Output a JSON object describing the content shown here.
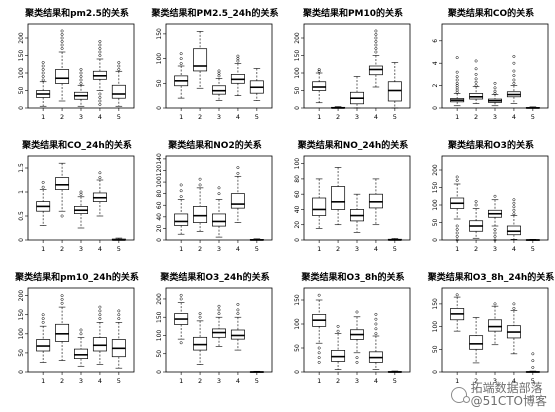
{
  "watermark": {
    "line1": "拓端数据部落",
    "line2": "@51CTO博客"
  },
  "chart_data": [
    {
      "type": "box",
      "title": "聚类结果和pm2.5的关系",
      "categories": [
        "1",
        "2",
        "3",
        "4",
        "5"
      ],
      "yticks": [
        0,
        50,
        100,
        150,
        200
      ],
      "ylim": [
        0,
        240
      ],
      "boxes": [
        {
          "min": 5,
          "q1": 30,
          "median": 40,
          "q3": 50,
          "max": 75,
          "outliers": [
            80,
            90,
            100,
            110,
            120,
            130
          ]
        },
        {
          "min": 20,
          "q1": 70,
          "median": 85,
          "q3": 110,
          "max": 160,
          "outliers": [
            170,
            180,
            190,
            200,
            210,
            220
          ]
        },
        {
          "min": 5,
          "q1": 25,
          "median": 35,
          "q3": 45,
          "max": 65,
          "outliers": [
            70,
            80,
            90,
            100,
            110
          ]
        },
        {
          "min": 50,
          "q1": 82,
          "median": 92,
          "q3": 105,
          "max": 140,
          "outliers": [
            10,
            20,
            30,
            40,
            150,
            160,
            170,
            180,
            190
          ]
        },
        {
          "min": 5,
          "q1": 28,
          "median": 40,
          "q3": 65,
          "max": 105,
          "outliers": [
            110,
            120,
            130
          ]
        }
      ]
    },
    {
      "type": "box",
      "title": "聚类结果和PM2.5_24h的关系",
      "categories": [
        "1",
        "2",
        "3",
        "4",
        "5"
      ],
      "yticks": [
        0,
        50,
        100,
        150
      ],
      "ylim": [
        0,
        170
      ],
      "boxes": [
        {
          "min": 20,
          "q1": 45,
          "median": 55,
          "q3": 65,
          "max": 85,
          "outliers": [
            90,
            100,
            110
          ]
        },
        {
          "min": 40,
          "q1": 75,
          "median": 85,
          "q3": 120,
          "max": 155,
          "outliers": []
        },
        {
          "min": 15,
          "q1": 28,
          "median": 35,
          "q3": 45,
          "max": 60,
          "outliers": [
            65,
            70,
            75
          ]
        },
        {
          "min": 25,
          "q1": 50,
          "median": 58,
          "q3": 68,
          "max": 90,
          "outliers": [
            95,
            100,
            105
          ]
        },
        {
          "min": 15,
          "q1": 30,
          "median": 42,
          "q3": 55,
          "max": 80,
          "outliers": []
        }
      ]
    },
    {
      "type": "box",
      "title": "聚类结果和PM10的关系",
      "categories": [
        "1",
        "2",
        "3",
        "4",
        "5"
      ],
      "yticks": [
        0,
        50,
        100,
        150,
        200
      ],
      "ylim": [
        0,
        240
      ],
      "boxes": [
        {
          "min": 15,
          "q1": 50,
          "median": 60,
          "q3": 75,
          "max": 100,
          "outliers": [
            105,
            110
          ]
        },
        {
          "min": 0,
          "q1": 0,
          "median": 0,
          "q3": 2,
          "max": 4,
          "outliers": []
        },
        {
          "min": 0,
          "q1": 12,
          "median": 28,
          "q3": 45,
          "max": 90,
          "outliers": []
        },
        {
          "min": 60,
          "q1": 95,
          "median": 110,
          "q3": 120,
          "max": 150,
          "outliers": [
            160,
            170,
            180,
            190,
            200,
            210,
            220
          ]
        },
        {
          "min": 0,
          "q1": 20,
          "median": 50,
          "q3": 75,
          "max": 130,
          "outliers": []
        }
      ]
    },
    {
      "type": "box",
      "title": "聚类结果和CO的关系",
      "categories": [
        "1",
        "2",
        "3",
        "4",
        "5"
      ],
      "yticks": [
        0,
        2,
        4,
        6
      ],
      "ylim": [
        0,
        7.5
      ],
      "boxes": [
        {
          "min": 0.2,
          "q1": 0.55,
          "median": 0.7,
          "q3": 0.85,
          "max": 1.3,
          "outliers": [
            1.4,
            1.6,
            1.8,
            2.0,
            2.2,
            2.5,
            2.8,
            3.2,
            4.5
          ]
        },
        {
          "min": 0.4,
          "q1": 0.8,
          "median": 1.0,
          "q3": 1.3,
          "max": 1.9,
          "outliers": [
            2.0,
            2.3,
            2.6,
            3.0,
            3.5,
            4.2
          ]
        },
        {
          "min": 0.2,
          "q1": 0.5,
          "median": 0.65,
          "q3": 0.8,
          "max": 1.2,
          "outliers": [
            1.3,
            1.5,
            1.8,
            2.2
          ]
        },
        {
          "min": 0.4,
          "q1": 1.0,
          "median": 1.2,
          "q3": 1.45,
          "max": 2.0,
          "outliers": [
            2.2,
            2.5,
            2.9,
            3.3,
            4.0,
            4.6
          ]
        },
        {
          "min": 0.0,
          "q1": 0.0,
          "median": 0.0,
          "q3": 0.05,
          "max": 0.1,
          "outliers": []
        }
      ]
    },
    {
      "type": "box",
      "title": "聚类结果和CO_24h的关系",
      "categories": [
        "1",
        "2",
        "3",
        "4",
        "5"
      ],
      "yticks": [
        0.0,
        0.5,
        1.0,
        1.5
      ],
      "ylim": [
        0,
        1.75
      ],
      "boxes": [
        {
          "min": 0.3,
          "q1": 0.6,
          "median": 0.7,
          "q3": 0.8,
          "max": 1.05,
          "outliers": [
            1.1,
            1.2
          ]
        },
        {
          "min": 0.6,
          "q1": 1.05,
          "median": 1.15,
          "q3": 1.3,
          "max": 1.6,
          "outliers": [
            0.5
          ]
        },
        {
          "min": 0.25,
          "q1": 0.55,
          "median": 0.62,
          "q3": 0.7,
          "max": 0.9,
          "outliers": [
            0.95,
            1.0
          ]
        },
        {
          "min": 0.5,
          "q1": 0.8,
          "median": 0.88,
          "q3": 0.98,
          "max": 1.25,
          "outliers": [
            1.3,
            1.4
          ]
        },
        {
          "min": 0.0,
          "q1": 0.0,
          "median": 0.0,
          "q3": 0.02,
          "max": 0.04,
          "outliers": []
        }
      ]
    },
    {
      "type": "box",
      "title": "聚类结果和NO2的关系",
      "categories": [
        "1",
        "2",
        "3",
        "4",
        "5"
      ],
      "yticks": [
        0,
        20,
        40,
        60,
        80,
        100,
        120,
        140
      ],
      "ylim": [
        0,
        145
      ],
      "boxes": [
        {
          "min": 10,
          "q1": 25,
          "median": 32,
          "q3": 45,
          "max": 70,
          "outliers": [
            75,
            85,
            95
          ]
        },
        {
          "min": 15,
          "q1": 30,
          "median": 42,
          "q3": 58,
          "max": 90,
          "outliers": [
            95,
            105
          ]
        },
        {
          "min": 5,
          "q1": 24,
          "median": 32,
          "q3": 45,
          "max": 70,
          "outliers": [
            80,
            90
          ]
        },
        {
          "min": 30,
          "q1": 55,
          "median": 62,
          "q3": 80,
          "max": 110,
          "outliers": [
            115,
            125
          ]
        },
        {
          "min": 0,
          "q1": 0,
          "median": 0,
          "q3": 1,
          "max": 2,
          "outliers": []
        }
      ]
    },
    {
      "type": "box",
      "title": "聚类结果和NO_24h的关系",
      "categories": [
        "1",
        "2",
        "3",
        "4",
        "5"
      ],
      "yticks": [
        0,
        20,
        40,
        60,
        80,
        100
      ],
      "ylim": [
        0,
        110
      ],
      "boxes": [
        {
          "min": 15,
          "q1": 32,
          "median": 40,
          "q3": 55,
          "max": 80,
          "outliers": []
        },
        {
          "min": 20,
          "q1": 40,
          "median": 50,
          "q3": 70,
          "max": 95,
          "outliers": []
        },
        {
          "min": 10,
          "q1": 25,
          "median": 32,
          "q3": 40,
          "max": 60,
          "outliers": []
        },
        {
          "min": 20,
          "q1": 42,
          "median": 50,
          "q3": 60,
          "max": 80,
          "outliers": []
        },
        {
          "min": 0,
          "q1": 0,
          "median": 0,
          "q3": 1,
          "max": 2,
          "outliers": []
        }
      ]
    },
    {
      "type": "box",
      "title": "聚类结果和O3的关系",
      "categories": [
        "1",
        "2",
        "3",
        "4",
        "5"
      ],
      "yticks": [
        0,
        50,
        100,
        150,
        200
      ],
      "ylim": [
        0,
        240
      ],
      "boxes": [
        {
          "min": 60,
          "q1": 90,
          "median": 105,
          "q3": 120,
          "max": 160,
          "outliers": [
            0,
            10,
            20,
            30,
            40,
            170,
            180
          ]
        },
        {
          "min": 5,
          "q1": 25,
          "median": 40,
          "q3": 55,
          "max": 90,
          "outliers": [
            100,
            110
          ]
        },
        {
          "min": 40,
          "q1": 65,
          "median": 75,
          "q3": 85,
          "max": 115,
          "outliers": [
            0,
            10,
            20,
            30,
            125
          ]
        },
        {
          "min": 2,
          "q1": 15,
          "median": 25,
          "q3": 40,
          "max": 70,
          "outliers": [
            75,
            85,
            95,
            105,
            115
          ]
        },
        {
          "min": 0,
          "q1": 0,
          "median": 0,
          "q3": 1,
          "max": 2,
          "outliers": []
        }
      ]
    },
    {
      "type": "box",
      "title": "聚类结果和pm10_24h的关系",
      "categories": [
        "1",
        "2",
        "3",
        "4",
        "5"
      ],
      "yticks": [
        0,
        50,
        100,
        150,
        200
      ],
      "ylim": [
        0,
        220
      ],
      "boxes": [
        {
          "min": 25,
          "q1": 55,
          "median": 68,
          "q3": 85,
          "max": 120,
          "outliers": [
            130,
            140,
            150
          ]
        },
        {
          "min": 30,
          "q1": 80,
          "median": 100,
          "q3": 125,
          "max": 170,
          "outliers": [
            180,
            190,
            200
          ]
        },
        {
          "min": 15,
          "q1": 35,
          "median": 45,
          "q3": 60,
          "max": 90,
          "outliers": [
            100,
            110
          ]
        },
        {
          "min": 20,
          "q1": 55,
          "median": 70,
          "q3": 90,
          "max": 130,
          "outliers": [
            140,
            150,
            160,
            170
          ]
        },
        {
          "min": 10,
          "q1": 40,
          "median": 62,
          "q3": 85,
          "max": 130,
          "outliers": [
            140,
            150,
            160
          ]
        }
      ]
    },
    {
      "type": "box",
      "title": "聚类结果和O3_24h的关系",
      "categories": [
        "1",
        "2",
        "3",
        "4",
        "5"
      ],
      "yticks": [
        0,
        50,
        100,
        150,
        200
      ],
      "ylim": [
        0,
        230
      ],
      "boxes": [
        {
          "min": 90,
          "q1": 130,
          "median": 145,
          "q3": 160,
          "max": 190,
          "outliers": [
            80,
            200,
            210
          ]
        },
        {
          "min": 20,
          "q1": 60,
          "median": 75,
          "q3": 95,
          "max": 140,
          "outliers": [
            150,
            160
          ]
        },
        {
          "min": 70,
          "q1": 95,
          "median": 108,
          "q3": 118,
          "max": 150,
          "outliers": [
            160,
            170,
            180
          ]
        },
        {
          "min": 60,
          "q1": 90,
          "median": 100,
          "q3": 115,
          "max": 150,
          "outliers": [
            160,
            170,
            185
          ]
        },
        {
          "min": 0,
          "q1": 0,
          "median": 0,
          "q3": 1,
          "max": 2,
          "outliers": []
        }
      ]
    },
    {
      "type": "box",
      "title": "聚类结果和O3_8h的关系",
      "categories": [
        "1",
        "2",
        "3",
        "4",
        "5"
      ],
      "yticks": [
        0,
        50,
        100,
        150
      ],
      "ylim": [
        0,
        175
      ],
      "boxes": [
        {
          "min": 60,
          "q1": 95,
          "median": 108,
          "q3": 120,
          "max": 150,
          "outliers": [
            20,
            30,
            40,
            50,
            160
          ]
        },
        {
          "min": 5,
          "q1": 22,
          "median": 32,
          "q3": 45,
          "max": 80,
          "outliers": [
            85,
            95
          ]
        },
        {
          "min": 40,
          "q1": 68,
          "median": 78,
          "q3": 88,
          "max": 115,
          "outliers": [
            20,
            30,
            125
          ]
        },
        {
          "min": 5,
          "q1": 20,
          "median": 30,
          "q3": 42,
          "max": 75,
          "outliers": [
            80,
            90,
            100,
            110,
            120
          ]
        },
        {
          "min": 0,
          "q1": 0,
          "median": 0,
          "q3": 1,
          "max": 2,
          "outliers": []
        }
      ]
    },
    {
      "type": "box",
      "title": "聚类结果和O3_8h_24h的关系",
      "categories": [
        "1",
        "2",
        "3",
        "4",
        "5"
      ],
      "yticks": [
        0,
        50,
        100,
        150
      ],
      "ylim": [
        0,
        185
      ],
      "boxes": [
        {
          "min": 90,
          "q1": 115,
          "median": 128,
          "q3": 140,
          "max": 165,
          "outliers": [
            170
          ]
        },
        {
          "min": 20,
          "q1": 50,
          "median": 62,
          "q3": 80,
          "max": 120,
          "outliers": []
        },
        {
          "min": 60,
          "q1": 90,
          "median": 100,
          "q3": 115,
          "max": 145,
          "outliers": [
            150
          ]
        },
        {
          "min": 40,
          "q1": 75,
          "median": 88,
          "q3": 102,
          "max": 135,
          "outliers": [
            140,
            150
          ]
        },
        {
          "min": 0,
          "q1": 0,
          "median": 0,
          "q3": 1,
          "max": 2,
          "outliers": [
            10,
            25,
            40
          ]
        }
      ]
    }
  ]
}
